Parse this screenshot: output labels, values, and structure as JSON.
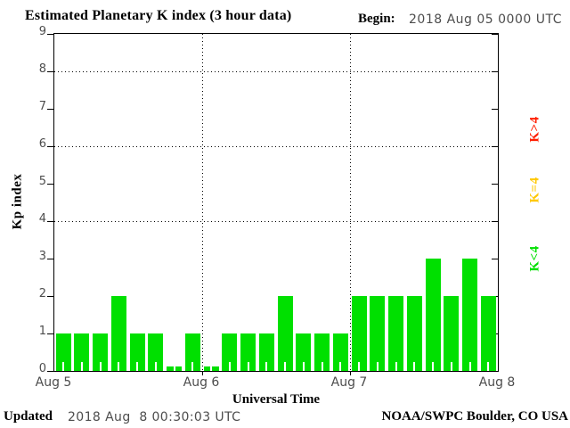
{
  "header": {
    "title": "Estimated Planetary K index (3 hour data)",
    "begin_label": "Begin:",
    "begin_value": "2018 Aug 05 0000 UTC"
  },
  "footer": {
    "updated_label": "Updated",
    "updated_value": "2018 Aug  8 00:30:03 UTC",
    "credit": "NOAA/SWPC Boulder, CO USA"
  },
  "chart_data": {
    "type": "bar",
    "title": "Estimated Planetary K index (3 hour data)",
    "xlabel": "Universal Time",
    "ylabel": "Kp index",
    "begin": "2018 Aug 05 0000 UTC",
    "ylim": [
      0,
      9
    ],
    "yticks": [
      0,
      1,
      2,
      3,
      4,
      5,
      6,
      7,
      8,
      9
    ],
    "gridlines_y": [
      4,
      6,
      8
    ],
    "grid_style": "dotted",
    "bins_per_day": 8,
    "bin_hours": 3,
    "day_labels": [
      "Aug 5",
      "Aug 6",
      "Aug 7",
      "Aug 8"
    ],
    "values": [
      1,
      1,
      1,
      2,
      1,
      1,
      0,
      1,
      0,
      1,
      1,
      1,
      2,
      1,
      1,
      1,
      2,
      2,
      2,
      2,
      3,
      2,
      3,
      2
    ],
    "bar_color": "#00E000",
    "legend_position": "right",
    "legend": [
      {
        "label": "K>4",
        "color": "#FF1E00"
      },
      {
        "label": "K=4",
        "color": "#FFC800"
      },
      {
        "label": "K<4",
        "color": "#00E000"
      }
    ]
  }
}
